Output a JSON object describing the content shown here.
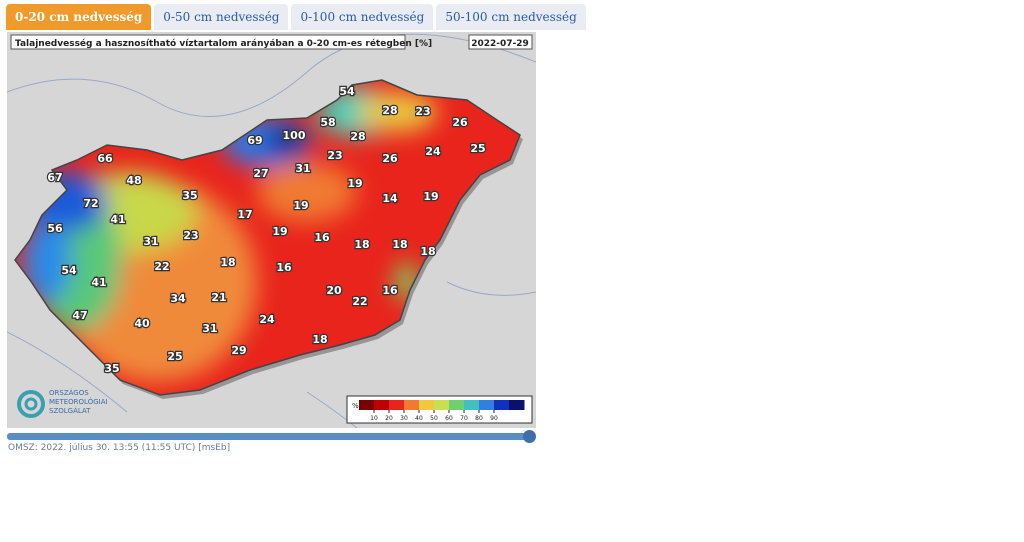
{
  "tabs": [
    "0-20 cm nedvesség",
    "0-50 cm nedvesség",
    "0-100 cm nedvesség",
    "50-100 cm nedvesség"
  ],
  "map": {
    "title": "Talajnedvesség a hasznosítható víztartalom arányában a 0-20 cm-es rétegben [%]",
    "date": "2022-07-29",
    "values": [
      54,
      28,
      23,
      26,
      69,
      100,
      58,
      28,
      23,
      26,
      24,
      25,
      66,
      67,
      48,
      27,
      31,
      19,
      72,
      35,
      14,
      19,
      41,
      17,
      19,
      56,
      31,
      23,
      19,
      16,
      18,
      18,
      18,
      54,
      22,
      18,
      16,
      41,
      20,
      16,
      22,
      34,
      21,
      47,
      40,
      24,
      31,
      18,
      25,
      29,
      35
    ],
    "legend": {
      "unit": "%",
      "ticks": [
        10,
        20,
        30,
        40,
        50,
        60,
        70,
        80,
        90
      ]
    },
    "logo": [
      "ORSZÁGOS",
      "METEOROLÓGIAI",
      "SZOLGÁLAT"
    ]
  },
  "footer": "OMSZ: 2022. július 30. 13:55 (11:55 UTC) [msEb]"
}
